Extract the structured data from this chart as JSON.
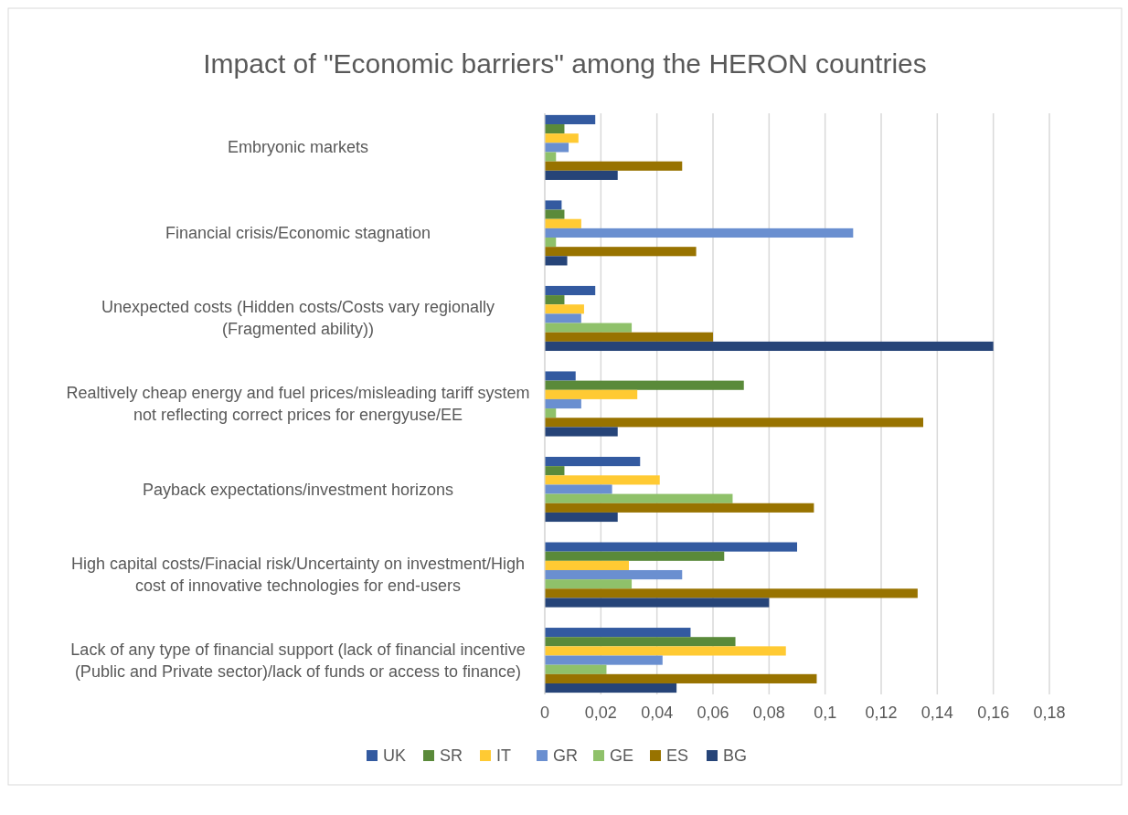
{
  "chart_data": {
    "type": "bar",
    "orientation": "horizontal",
    "title": "Impact of \"Economic barriers\" among the HERON countries",
    "categories": [
      "Embryonic markets",
      "Financial crisis/Economic stagnation",
      "Unexpected costs (Hidden costs/Costs vary regionally (Fragmented ability))",
      "Realtively cheap energy and fuel prices/misleading tariff system not reflecting correct prices for energyuse/EE",
      "Payback expectations/investment horizons",
      "High capital costs/Finacial risk/Uncertainty on investment/High cost of innovative technologies for end-users",
      "Lack of any type of financial support (lack of financial incentive (Public and Private sector)/lack of funds or access to finance)"
    ],
    "series": [
      {
        "name": "UK",
        "color": "#335aa0",
        "values": [
          0.018,
          0.006,
          0.018,
          0.011,
          0.034,
          0.09,
          0.052
        ]
      },
      {
        "name": "SR",
        "color": "#5a8a3a",
        "values": [
          0.007,
          0.007,
          0.007,
          0.071,
          0.007,
          0.064,
          0.068
        ]
      },
      {
        "name": "IT",
        "color": "#ffca33",
        "values": [
          0.012,
          0.013,
          0.014,
          0.033,
          0.041,
          0.03,
          0.086
        ]
      },
      {
        "name": "GR",
        "color": "#6a8fd0",
        "values": [
          0.0085,
          0.11,
          0.013,
          0.013,
          0.024,
          0.049,
          0.042
        ]
      },
      {
        "name": "GE",
        "color": "#8fc16a",
        "values": [
          0.004,
          0.004,
          0.031,
          0.004,
          0.067,
          0.031,
          0.022
        ]
      },
      {
        "name": "ES",
        "color": "#987300",
        "values": [
          0.049,
          0.054,
          0.06,
          0.135,
          0.096,
          0.133,
          0.097
        ]
      },
      {
        "name": "BG",
        "color": "#264478",
        "values": [
          0.026,
          0.008,
          0.16,
          0.026,
          0.026,
          0.08,
          0.047
        ]
      }
    ],
    "xlim": [
      0,
      0.18
    ],
    "xticks": [
      0,
      {
        "value": 0.02,
        "label": "0,02"
      },
      {
        "value": 0.04,
        "label": "0,04"
      },
      {
        "value": 0.06,
        "label": "0,06"
      },
      {
        "value": 0.08,
        "label": "0,08"
      },
      {
        "value": 0.1,
        "label": "0,1"
      },
      {
        "value": 0.12,
        "label": "0,12"
      },
      {
        "value": 0.14,
        "label": "0,14"
      },
      {
        "value": 0.16,
        "label": "0,16"
      },
      {
        "value": 0.18,
        "label": "0,18"
      }
    ],
    "grid": "x",
    "legend": "bottom"
  }
}
